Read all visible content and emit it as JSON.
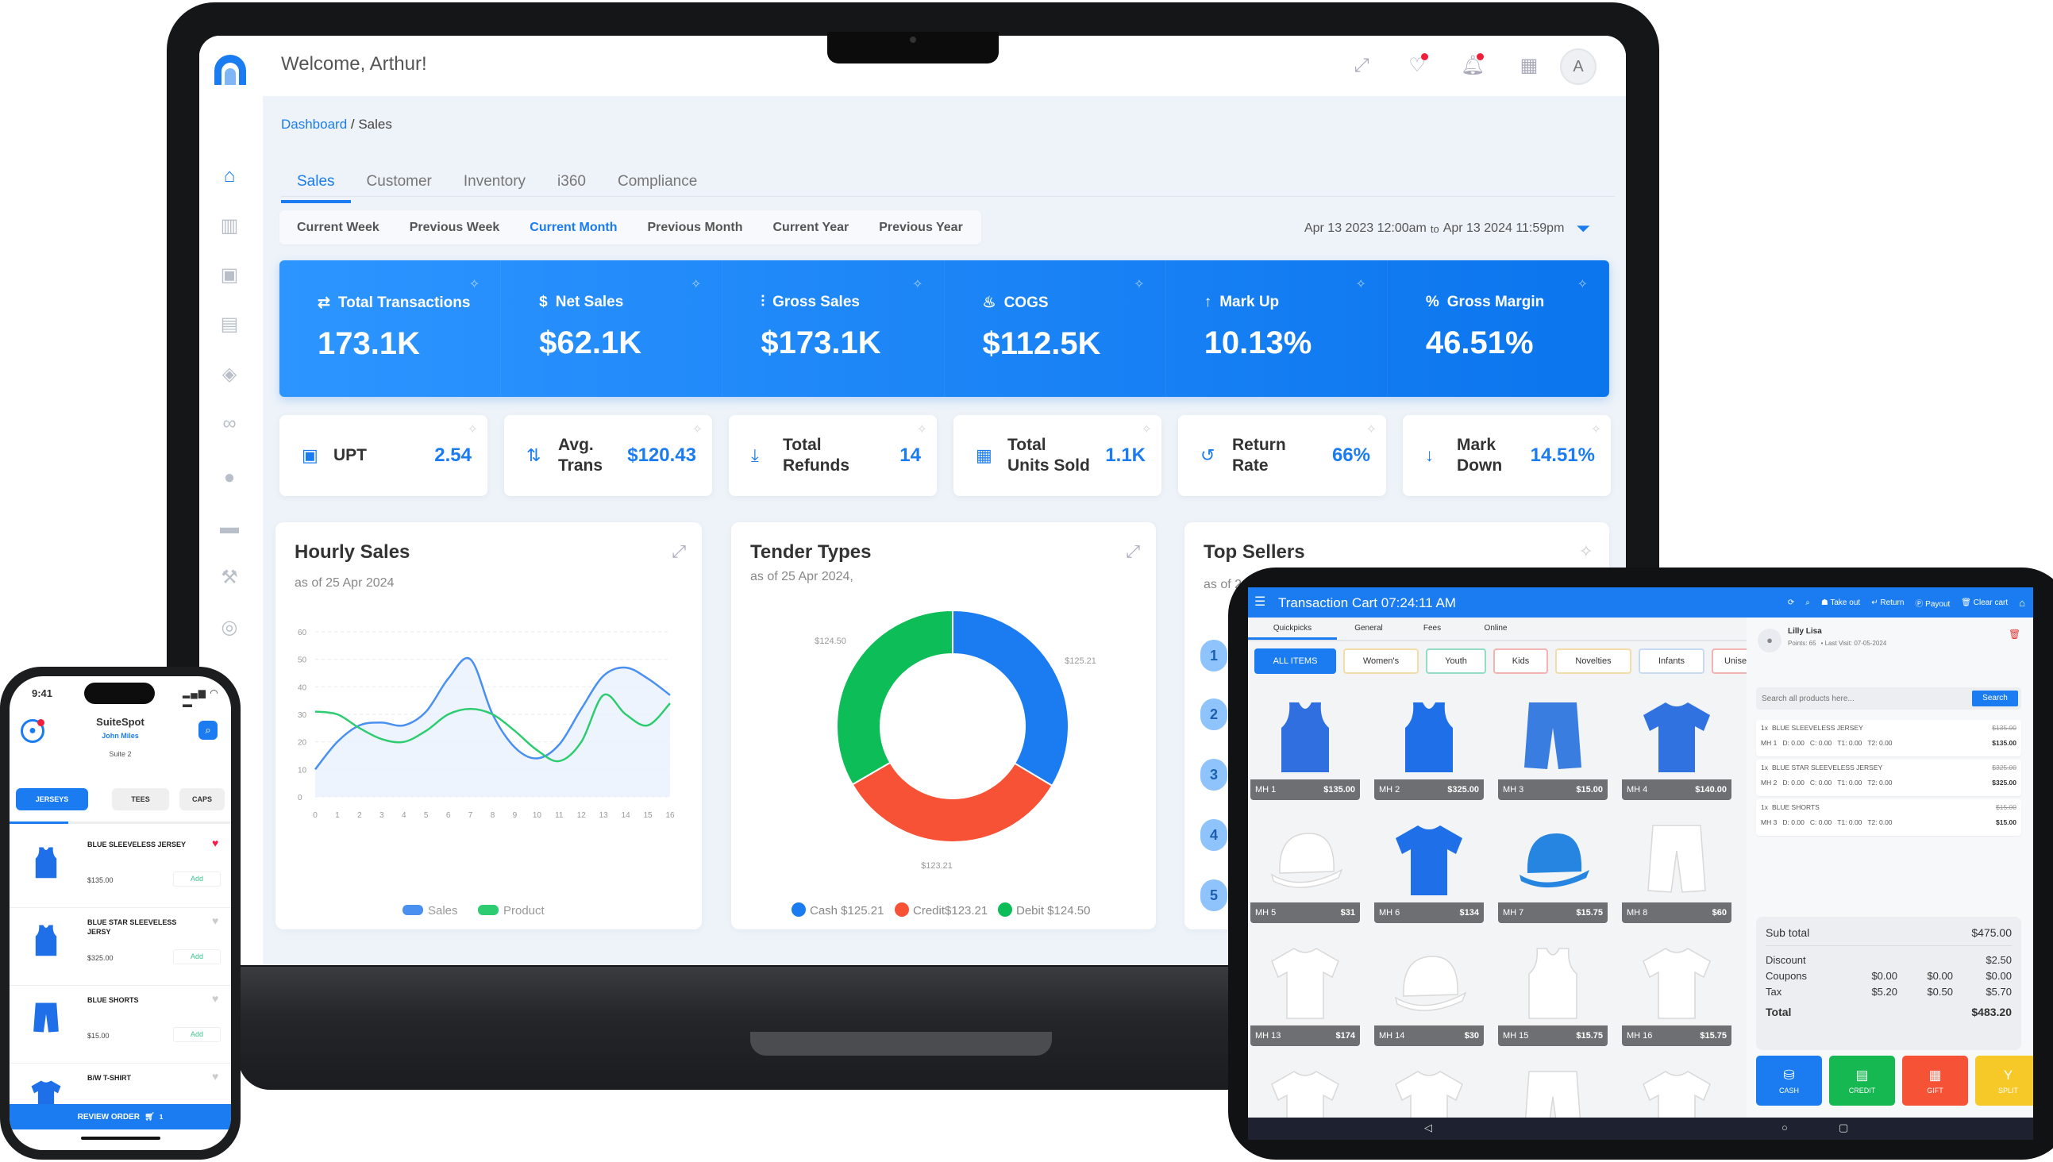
{
  "laptop": {
    "header": {
      "welcome": "Welcome, Arthur!",
      "avatar_initial": "A",
      "icons": [
        "expand-icon",
        "handshake-icon",
        "bell-icon",
        "apps-grid-icon"
      ]
    },
    "sidebar": {
      "items": [
        {
          "icon": "home-icon",
          "glyph": "⌂",
          "active": true
        },
        {
          "icon": "bar-chart-icon",
          "glyph": "▥"
        },
        {
          "icon": "box-icon",
          "glyph": "▣"
        },
        {
          "icon": "archive-icon",
          "glyph": "▤"
        },
        {
          "icon": "tag-icon",
          "glyph": "◈"
        },
        {
          "icon": "loop-icon",
          "glyph": "∞"
        },
        {
          "icon": "user-icon",
          "glyph": "●"
        },
        {
          "icon": "credit-card-icon",
          "glyph": "▬"
        },
        {
          "icon": "wrench-icon",
          "glyph": "⚒"
        },
        {
          "icon": "settings-icon",
          "glyph": "◎"
        }
      ]
    },
    "breadcrumb": {
      "root": "Dashboard",
      "separator": " / ",
      "current": "Sales"
    },
    "tabs": [
      {
        "label": "Sales",
        "active": true
      },
      {
        "label": "Customer"
      },
      {
        "label": "Inventory"
      },
      {
        "label": "i360"
      },
      {
        "label": "Compliance"
      }
    ],
    "periods": [
      {
        "label": "Current Week"
      },
      {
        "label": "Previous Week"
      },
      {
        "label": "Current Month",
        "active": true
      },
      {
        "label": "Previous Month"
      },
      {
        "label": "Current Year"
      },
      {
        "label": "Previous Year"
      }
    ],
    "date_range": {
      "from": "Apr 13 2023 12:00am",
      "to_word": "to",
      "to": "Apr 13 2024 11:59pm"
    },
    "kpis": [
      {
        "label": "Total Transactions",
        "value": "173.1K",
        "icon": "transfer-icon",
        "glyph": "⇄"
      },
      {
        "label": "Net Sales",
        "value": "$62.1K",
        "icon": "dollar-icon",
        "glyph": "$"
      },
      {
        "label": "Gross Sales",
        "value": "$173.1K",
        "icon": "growth-chart-icon",
        "glyph": "⫶"
      },
      {
        "label": "COGS",
        "value": "$112.5K",
        "icon": "hand-coins-icon",
        "glyph": "♨"
      },
      {
        "label": "Mark Up",
        "value": "10.13%",
        "icon": "arrow-up-icon",
        "glyph": "↑"
      },
      {
        "label": "Gross Margin",
        "value": "46.51%",
        "icon": "percent-icon",
        "glyph": "%"
      }
    ],
    "metrics": [
      {
        "label": "UPT",
        "value": "2.54",
        "icon": "package-icon",
        "glyph": "▣"
      },
      {
        "label": "Avg.\nTrans",
        "value": "$120.43",
        "icon": "exchange-icon",
        "glyph": "⇅"
      },
      {
        "label": "Total\nRefunds",
        "value": "14",
        "icon": "refund-icon",
        "glyph": "⤓"
      },
      {
        "label": "Total\nUnits Sold",
        "value": "1.1K",
        "icon": "units-icon",
        "glyph": "▦"
      },
      {
        "label": "Return\nRate",
        "value": "66%",
        "icon": "undo-icon",
        "glyph": "↺"
      },
      {
        "label": "Mark\nDown",
        "value": "14.51%",
        "icon": "arrow-down-icon",
        "glyph": "↓"
      }
    ],
    "top_sellers": {
      "title": "Top Sellers",
      "subtitle": "as of 2",
      "ranks": [
        "1",
        "2",
        "3",
        "4",
        "5"
      ]
    }
  },
  "chart_data": [
    {
      "type": "line",
      "title": "Hourly Sales",
      "subtitle": "as of 25 Apr 2024",
      "x": [
        0,
        1,
        2,
        3,
        4,
        5,
        6,
        7,
        8,
        9,
        10,
        11,
        12,
        13,
        14,
        15,
        16
      ],
      "ylim": [
        0,
        60
      ],
      "yticks": [
        0,
        10,
        20,
        30,
        40,
        50,
        60
      ],
      "grid": true,
      "legend": "bottom",
      "series": [
        {
          "name": "Sales",
          "color": "#4a90f0",
          "values": [
            10,
            20,
            26,
            27,
            26,
            31,
            43,
            50,
            30,
            18,
            14,
            19,
            32,
            44,
            47,
            43,
            37
          ]
        },
        {
          "name": "Product",
          "color": "#2ecc71",
          "values": [
            31,
            30,
            25,
            21,
            20,
            24,
            30,
            32,
            30,
            24,
            17,
            13,
            20,
            37,
            30,
            26,
            34
          ]
        }
      ]
    },
    {
      "type": "pie",
      "title": "Tender Types",
      "subtitle": "as of 25 Apr 2024,",
      "legend": "bottom",
      "slices": [
        {
          "name": "Cash",
          "value": 125.21,
          "label": "$125.21",
          "legend": "Cash $125.21",
          "color": "#1a7cf0"
        },
        {
          "name": "Credit",
          "value": 123.21,
          "label": "$123.21",
          "legend": "Credit$123.21",
          "color": "#f75136"
        },
        {
          "name": "Debit",
          "value": 124.5,
          "label": "$124.50",
          "legend": "Debit $124.50",
          "color": "#0dbd57"
        }
      ]
    }
  ],
  "tablet": {
    "title": "Transaction Cart 07:24:11 AM",
    "actions": [
      {
        "label": "Take out",
        "glyph": "☗"
      },
      {
        "label": "Return",
        "glyph": "↵"
      },
      {
        "label": "Payout",
        "glyph": "Ⓟ"
      },
      {
        "label": "Clear cart",
        "glyph": "🗑"
      }
    ],
    "tabs": [
      {
        "label": "Quickpicks",
        "active": true
      },
      {
        "label": "General"
      },
      {
        "label": "Fees"
      },
      {
        "label": "Online"
      }
    ],
    "categories": [
      {
        "label": "ALL ITEMS",
        "active": true,
        "border": "#1a7cf0",
        "w": 103
      },
      {
        "label": "Women's",
        "border": "#f3dca8",
        "w": 95
      },
      {
        "label": "Youth",
        "border": "#95dcc4",
        "w": 76
      },
      {
        "label": "Kids",
        "border": "#f3b3b3",
        "w": 69
      },
      {
        "label": "Novelties",
        "border": "#f3dca8",
        "w": 96
      },
      {
        "label": "Infants",
        "border": "#c8daf3",
        "w": 83
      },
      {
        "label": "Unise",
        "border": "#f3b3b3",
        "w": 60
      }
    ],
    "products": [
      {
        "code": "MH 1",
        "price": "$135.00",
        "shape": "tank",
        "color": "#2f6fe0"
      },
      {
        "code": "MH 2",
        "price": "$325.00",
        "shape": "tank",
        "color": "#1f6fe8"
      },
      {
        "code": "MH 3",
        "price": "$15.00",
        "shape": "shorts",
        "color": "#3a7de0"
      },
      {
        "code": "MH 4",
        "price": "$140.00",
        "shape": "tee",
        "color": "#2f72e0"
      },
      {
        "code": "MH 5",
        "price": "$31",
        "shape": "cap",
        "color": "#ffffff"
      },
      {
        "code": "MH 6",
        "price": "$134",
        "shape": "tee",
        "color": "#1f6fe8"
      },
      {
        "code": "MH 7",
        "price": "$15.75",
        "shape": "cap",
        "color": "#2585e0"
      },
      {
        "code": "MH 8",
        "price": "$60",
        "shape": "shorts",
        "color": "#ffffff"
      },
      {
        "code": "MH 13",
        "price": "$174",
        "shape": "tee",
        "color": "#ffffff"
      },
      {
        "code": "MH 14",
        "price": "$30",
        "shape": "cap",
        "color": "#ffffff"
      },
      {
        "code": "MH 15",
        "price": "$15.75",
        "shape": "tank",
        "color": "#ffffff"
      },
      {
        "code": "MH 16",
        "price": "$15.75",
        "shape": "tee",
        "color": "#ffffff"
      },
      {
        "shape": "tee",
        "color": "#ffffff"
      },
      {
        "shape": "tee",
        "color": "#ffffff"
      },
      {
        "shape": "shorts",
        "color": "#ffffff"
      },
      {
        "shape": "tee",
        "color": "#ffffff"
      }
    ],
    "customer": {
      "name": "Lilly Lisa",
      "points": "Points: 65",
      "last_visit": "• Last Visit: 07-05-2024"
    },
    "search": {
      "placeholder": "Search all products here...",
      "button": "Search"
    },
    "cart": [
      {
        "qty": "1x",
        "name": "BLUE SLEEVELESS JERSEY",
        "list_price": "$135.00",
        "price": "$135.00",
        "meta": "MH 1   D: 0.00   C: 0.00   T1: 0.00   T2: 0.00"
      },
      {
        "qty": "1x",
        "name": "BLUE STAR SLEEVELESS JERSEY",
        "list_price": "$325.00",
        "price": "$325.00",
        "meta": "MH 2   D: 0.00   C: 0.00   T1: 0.00   T2: 0.00"
      },
      {
        "qty": "1x",
        "name": "BLUE SHORTS",
        "list_price": "$15.00",
        "price": "$15.00",
        "meta": "MH 3   D: 0.00   C: 0.00   T1: 0.00   T2: 0.00"
      }
    ],
    "summary": {
      "subtotal_label": "Sub total",
      "subtotal": "$475.00",
      "discount_label": "Discount",
      "discount": "$2.50",
      "coupons_label": "Coupons",
      "coupons": [
        "$0.00",
        "$0.00",
        "$0.00"
      ],
      "tax_label": "Tax",
      "tax": [
        "$5.20",
        "$0.50",
        "$5.70"
      ],
      "total_label": "Total",
      "total": "$483.20"
    },
    "payments": [
      {
        "label": "CASH",
        "color": "#1a7cf0",
        "glyph": "⛁"
      },
      {
        "label": "CREDIT",
        "color": "#15b851",
        "glyph": "▤"
      },
      {
        "label": "GIFT",
        "color": "#f55236",
        "glyph": "▦"
      },
      {
        "label": "SPLIT",
        "color": "#f6c928",
        "glyph": "Y"
      }
    ]
  },
  "phone": {
    "time": "9:41",
    "app_name": "SuiteSpot",
    "user": "John Miles",
    "suite": "Suite 2",
    "tabs": [
      {
        "label": "JERSEYS",
        "active": true
      },
      {
        "label": "TEES"
      },
      {
        "label": "CAPS"
      }
    ],
    "items": [
      {
        "name": "BLUE SLEEVELESS JERSEY",
        "price": "$135.00",
        "favorite": true,
        "shape": "tank"
      },
      {
        "name": "BLUE STAR SLEEVELESS JERSY",
        "price": "$325.00",
        "shape": "tank"
      },
      {
        "name": "BLUE SHORTS",
        "price": "$15.00",
        "shape": "shorts"
      },
      {
        "name": "B/W T-SHIRT",
        "shape": "tee"
      }
    ],
    "add_label": "Add",
    "review_order": "REVIEW ORDER",
    "cart_count": "1"
  }
}
